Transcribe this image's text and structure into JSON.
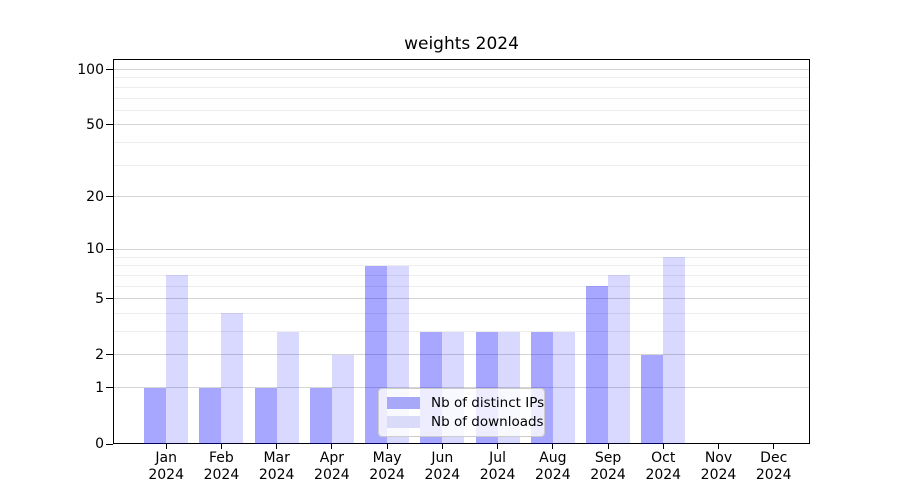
{
  "chart_data": {
    "type": "bar",
    "title": "weights 2024",
    "categories": [
      "Jan",
      "Feb",
      "Mar",
      "Apr",
      "May",
      "Jun",
      "Jul",
      "Aug",
      "Sep",
      "Oct",
      "Nov",
      "Dec"
    ],
    "year_label": "2024",
    "series": [
      {
        "name": "Nb of distinct IPs",
        "color": "rgba(0,0,255,0.345)",
        "legend_hex": "#a8a8f9",
        "values": [
          1,
          1,
          1,
          1,
          8,
          3,
          3,
          3,
          6,
          2,
          0,
          0
        ]
      },
      {
        "name": "Nb of downloads",
        "color": "rgba(0,0,255,0.148)",
        "legend_hex": "#dadaf9",
        "values": [
          7,
          4,
          3,
          2,
          8,
          3,
          3,
          3,
          7,
          9,
          0,
          0
        ]
      }
    ],
    "xlabel": "",
    "ylabel": "",
    "yscale": "log1p",
    "y_major_ticks": [
      0,
      1,
      2,
      5,
      10,
      20,
      50,
      100
    ],
    "y_minor_gridlines": [
      3,
      4,
      6,
      7,
      8,
      9,
      30,
      40,
      60,
      70,
      80,
      90
    ],
    "ylim": [
      0,
      115
    ],
    "grid": true,
    "legend_position": "lower-center-inside"
  },
  "colors": {
    "major_grid": "#d4d4d4",
    "minor_grid": "#ececec",
    "spine": "#000000",
    "legend_border": "#cccccc",
    "legend_bg": "rgba(255,255,255,0.8)"
  }
}
